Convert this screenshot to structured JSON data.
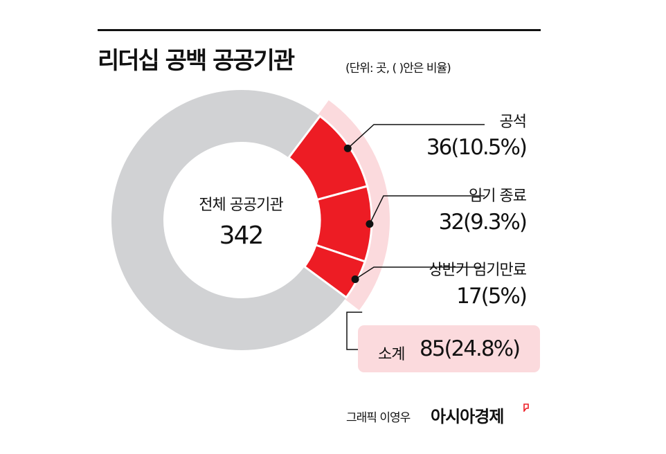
{
  "title": "리더십 공백 공공기관",
  "subtitle": "(단위: 곳, (   )안은 비율)",
  "center": {
    "label": "전체 공공기관",
    "value": "342"
  },
  "colors": {
    "rest": "#d1d2d4",
    "highlight": "#ed1c24",
    "band": "#fbdadd",
    "text": "#111111"
  },
  "chart_data": {
    "type": "pie",
    "total": 342,
    "segments": [
      {
        "name": "공석",
        "value": 36,
        "percent": 10.5,
        "label": "36(10.5%)"
      },
      {
        "name": "임기 종료",
        "value": 32,
        "percent": 9.3,
        "label": "32(9.3%)"
      },
      {
        "name": "상반기 임기만료",
        "value": 17,
        "percent": 5,
        "label": "17(5%)"
      }
    ],
    "subtotal": {
      "name": "소계",
      "value": 85,
      "percent": 24.8,
      "label": "85(24.8%)"
    }
  },
  "credit": "그래픽 이영우",
  "brand": "아시아경제"
}
